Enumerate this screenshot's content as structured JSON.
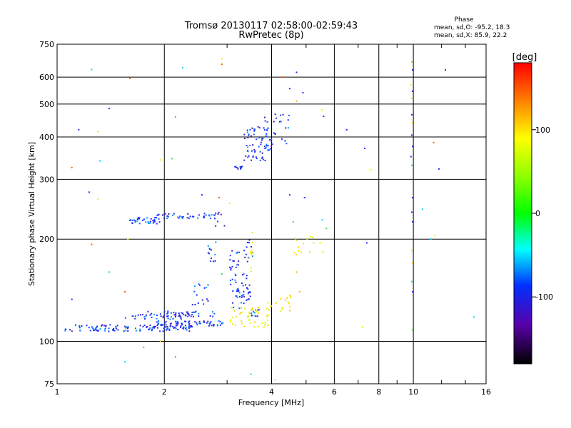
{
  "chart_data": {
    "type": "scatter",
    "title": "Tromsø 20130117 02:58:00-02:59:43",
    "subtitle": "RwPretec (8p)",
    "xlabel": "Frequency [MHz]",
    "ylabel": "Stationary phase Virtual Height [km]",
    "x_scale": "log",
    "y_scale": "log",
    "xlim": [
      1,
      16
    ],
    "ylim": [
      75,
      750
    ],
    "grid": true,
    "x_ticks": [
      1,
      2,
      4,
      6,
      8,
      10,
      16
    ],
    "x_tick_labels": [
      "1",
      "2",
      "4",
      "6",
      "8",
      "10",
      "16"
    ],
    "y_ticks": [
      75,
      100,
      200,
      300,
      400,
      500,
      600,
      750
    ],
    "y_tick_labels": [
      "75",
      "100",
      "200",
      "300",
      "400",
      "500",
      "600",
      "750"
    ],
    "stats": {
      "heading": "Phase",
      "line1": "mean, sd,O: -95.2, 18.3",
      "line2": "mean, sd,X:  85.9, 22.2"
    },
    "colorbar": {
      "label": "[deg]",
      "range": [
        -180,
        180
      ],
      "ticks": [
        "100",
        "0",
        "-100"
      ]
    },
    "series": [
      {
        "phase_group": "blue_O",
        "clusters": [
          {
            "x_range": [
              1.05,
              2.4
            ],
            "y_range": [
              107,
              112
            ],
            "n": 120
          },
          {
            "x_range": [
              1.9,
              2.95
            ],
            "y_range": [
              111,
              115
            ],
            "n": 60
          },
          {
            "x_range": [
              1.55,
              2.3
            ],
            "y_range": [
              116,
              120
            ],
            "n": 30
          },
          {
            "x_range": [
              2.0,
              2.45
            ],
            "y_range": [
              118,
              123
            ],
            "n": 20
          },
          {
            "x_range": [
              1.75,
              2.85
            ],
            "y_range": [
              118,
              123
            ],
            "n": 25
          },
          {
            "x_range": [
              2.4,
              2.75
            ],
            "y_range": [
              128,
              150
            ],
            "n": 15
          },
          {
            "x_range": [
              2.65,
              2.8
            ],
            "y_range": [
              165,
              205
            ],
            "n": 12
          },
          {
            "x_range": [
              3.05,
              3.25
            ],
            "y_range": [
              140,
              185
            ],
            "n": 25
          },
          {
            "x_range": [
              3.1,
              3.35
            ],
            "y_range": [
              125,
              150
            ],
            "n": 20
          },
          {
            "x_range": [
              3.3,
              3.5
            ],
            "y_range": [
              125,
              160
            ],
            "n": 20
          },
          {
            "x_range": [
              3.35,
              3.55
            ],
            "y_range": [
              170,
              200
            ],
            "n": 12
          },
          {
            "x_range": [
              3.5,
              3.7
            ],
            "y_range": [
              115,
              125
            ],
            "n": 12
          },
          {
            "x_range": [
              1.6,
              1.95
            ],
            "y_range": [
              222,
              232
            ],
            "n": 35
          },
          {
            "x_range": [
              1.9,
              2.75
            ],
            "y_range": [
              230,
              238
            ],
            "n": 40
          },
          {
            "x_range": [
              2.75,
              2.95
            ],
            "y_range": [
              215,
              240
            ],
            "n": 10
          },
          {
            "x_range": [
              3.1,
              3.35
            ],
            "y_range": [
              322,
              328
            ],
            "n": 12
          },
          {
            "x_range": [
              3.35,
              4.0
            ],
            "y_range": [
              340,
              430
            ],
            "n": 70
          },
          {
            "x_range": [
              3.8,
              4.5
            ],
            "y_range": [
              380,
              470
            ],
            "n": 25
          }
        ]
      },
      {
        "phase_group": "yellow_X",
        "clusters": [
          {
            "x_range": [
              3.05,
              3.95
            ],
            "y_range": [
              110,
              126
            ],
            "n": 45
          },
          {
            "x_range": [
              3.9,
              4.6
            ],
            "y_range": [
              122,
              138
            ],
            "n": 18
          },
          {
            "x_range": [
              3.45,
              3.55
            ],
            "y_range": [
              160,
              210
            ],
            "n": 10
          },
          {
            "x_range": [
              4.6,
              5.6
            ],
            "y_range": [
              178,
              205
            ],
            "n": 15
          }
        ]
      },
      {
        "phase_group": "sparse_mixed",
        "points": [
          {
            "x": 1.25,
            "y": 632
          },
          {
            "x": 1.6,
            "y": 595
          },
          {
            "x": 2.25,
            "y": 640
          },
          {
            "x": 2.9,
            "y": 680
          },
          {
            "x": 2.9,
            "y": 655
          },
          {
            "x": 1.4,
            "y": 485
          },
          {
            "x": 2.15,
            "y": 458
          },
          {
            "x": 2.1,
            "y": 345
          },
          {
            "x": 1.95,
            "y": 342
          },
          {
            "x": 1.15,
            "y": 420
          },
          {
            "x": 1.3,
            "y": 415
          },
          {
            "x": 1.32,
            "y": 340
          },
          {
            "x": 1.1,
            "y": 325
          },
          {
            "x": 1.23,
            "y": 275
          },
          {
            "x": 1.3,
            "y": 262
          },
          {
            "x": 1.58,
            "y": 200
          },
          {
            "x": 1.25,
            "y": 193
          },
          {
            "x": 1.4,
            "y": 160
          },
          {
            "x": 1.55,
            "y": 140
          },
          {
            "x": 1.1,
            "y": 133
          },
          {
            "x": 1.55,
            "y": 87
          },
          {
            "x": 1.75,
            "y": 96
          },
          {
            "x": 1.95,
            "y": 100
          },
          {
            "x": 2.15,
            "y": 90
          },
          {
            "x": 2.55,
            "y": 270
          },
          {
            "x": 2.85,
            "y": 265
          },
          {
            "x": 3.05,
            "y": 255
          },
          {
            "x": 2.9,
            "y": 158
          },
          {
            "x": 3.5,
            "y": 80
          },
          {
            "x": 4.1,
            "y": 77
          },
          {
            "x": 4.5,
            "y": 555
          },
          {
            "x": 4.7,
            "y": 620
          },
          {
            "x": 4.3,
            "y": 600
          },
          {
            "x": 4.7,
            "y": 510
          },
          {
            "x": 4.9,
            "y": 540
          },
          {
            "x": 5.55,
            "y": 480
          },
          {
            "x": 5.6,
            "y": 460
          },
          {
            "x": 4.5,
            "y": 270
          },
          {
            "x": 4.95,
            "y": 265
          },
          {
            "x": 4.6,
            "y": 225
          },
          {
            "x": 5.55,
            "y": 228
          },
          {
            "x": 5.7,
            "y": 215
          },
          {
            "x": 4.7,
            "y": 160
          },
          {
            "x": 4.8,
            "y": 140
          },
          {
            "x": 6.5,
            "y": 420
          },
          {
            "x": 7.3,
            "y": 370
          },
          {
            "x": 7.6,
            "y": 320
          },
          {
            "x": 7.4,
            "y": 195
          },
          {
            "x": 7.2,
            "y": 110
          },
          {
            "x": 9.9,
            "y": 665
          },
          {
            "x": 9.95,
            "y": 630
          },
          {
            "x": 9.85,
            "y": 570
          },
          {
            "x": 9.95,
            "y": 545
          },
          {
            "x": 9.9,
            "y": 520
          },
          {
            "x": 9.9,
            "y": 465
          },
          {
            "x": 9.95,
            "y": 440
          },
          {
            "x": 9.9,
            "y": 405
          },
          {
            "x": 9.95,
            "y": 375
          },
          {
            "x": 9.85,
            "y": 350
          },
          {
            "x": 9.9,
            "y": 330
          },
          {
            "x": 9.95,
            "y": 265
          },
          {
            "x": 9.9,
            "y": 240
          },
          {
            "x": 9.95,
            "y": 225
          },
          {
            "x": 9.9,
            "y": 185
          },
          {
            "x": 9.95,
            "y": 170
          },
          {
            "x": 9.9,
            "y": 150
          },
          {
            "x": 9.95,
            "y": 140
          },
          {
            "x": 9.95,
            "y": 108
          },
          {
            "x": 10.6,
            "y": 245
          },
          {
            "x": 11.4,
            "y": 385
          },
          {
            "x": 11.8,
            "y": 322
          },
          {
            "x": 11.5,
            "y": 205
          },
          {
            "x": 12.3,
            "y": 630
          },
          {
            "x": 14.8,
            "y": 118
          },
          {
            "x": 11.2,
            "y": 200
          }
        ]
      }
    ]
  }
}
